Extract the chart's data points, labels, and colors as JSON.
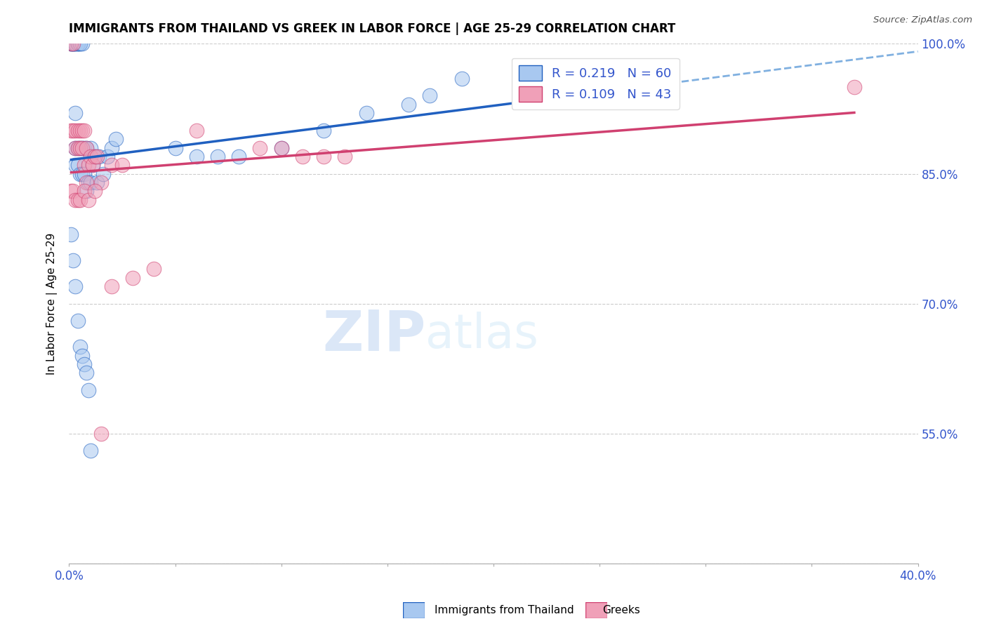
{
  "title": "IMMIGRANTS FROM THAILAND VS GREEK IN LABOR FORCE | AGE 25-29 CORRELATION CHART",
  "source": "Source: ZipAtlas.com",
  "ylabel": "In Labor Force | Age 25-29",
  "xlim": [
    0.0,
    0.4
  ],
  "ylim": [
    0.4,
    1.0
  ],
  "xticks": [
    0.0,
    0.05,
    0.1,
    0.15,
    0.2,
    0.25,
    0.3,
    0.35,
    0.4
  ],
  "xticklabels_bottom": [
    "0.0%",
    "",
    "",
    "",
    "",
    "",
    "",
    "",
    "40.0%"
  ],
  "yticks": [
    0.4,
    0.55,
    0.7,
    0.85,
    1.0
  ],
  "yticklabels_right": [
    "",
    "55.0%",
    "70.0%",
    "85.0%",
    "100.0%"
  ],
  "legend_r1": "R = 0.219",
  "legend_n1": "N = 60",
  "legend_r2": "R = 0.109",
  "legend_n2": "N = 43",
  "color_thailand": "#a8c8f0",
  "color_greek": "#f0a0b8",
  "color_trend_thailand": "#2060c0",
  "color_trend_greek": "#d04070",
  "color_dashed": "#80b0e0",
  "watermark_zip": "ZIP",
  "watermark_atlas": "atlas",
  "thailand_x": [
    0.001,
    0.001,
    0.001,
    0.002,
    0.002,
    0.002,
    0.002,
    0.003,
    0.003,
    0.003,
    0.003,
    0.003,
    0.003,
    0.004,
    0.004,
    0.004,
    0.004,
    0.004,
    0.005,
    0.005,
    0.005,
    0.005,
    0.006,
    0.006,
    0.006,
    0.007,
    0.007,
    0.008,
    0.008,
    0.009,
    0.01,
    0.01,
    0.011,
    0.012,
    0.013,
    0.014,
    0.016,
    0.018,
    0.02,
    0.022,
    0.05,
    0.06,
    0.07,
    0.08,
    0.1,
    0.12,
    0.14,
    0.16,
    0.17,
    0.185,
    0.001,
    0.002,
    0.003,
    0.004,
    0.005,
    0.006,
    0.007,
    0.008,
    0.009,
    0.01
  ],
  "thailand_y": [
    1.0,
    1.0,
    1.0,
    1.0,
    1.0,
    1.0,
    1.0,
    1.0,
    1.0,
    1.0,
    0.92,
    0.88,
    0.86,
    1.0,
    1.0,
    1.0,
    0.88,
    0.86,
    1.0,
    1.0,
    0.88,
    0.85,
    1.0,
    0.88,
    0.85,
    0.88,
    0.85,
    0.88,
    0.83,
    0.84,
    0.88,
    0.84,
    0.86,
    0.87,
    0.84,
    0.87,
    0.85,
    0.87,
    0.88,
    0.89,
    0.88,
    0.87,
    0.87,
    0.87,
    0.88,
    0.9,
    0.92,
    0.93,
    0.94,
    0.96,
    0.78,
    0.75,
    0.72,
    0.68,
    0.65,
    0.64,
    0.63,
    0.62,
    0.6,
    0.53
  ],
  "greek_x": [
    0.001,
    0.001,
    0.002,
    0.002,
    0.003,
    0.003,
    0.004,
    0.004,
    0.005,
    0.005,
    0.006,
    0.006,
    0.007,
    0.007,
    0.008,
    0.008,
    0.009,
    0.01,
    0.011,
    0.012,
    0.013,
    0.015,
    0.02,
    0.025,
    0.06,
    0.09,
    0.1,
    0.11,
    0.12,
    0.13,
    0.001,
    0.002,
    0.003,
    0.004,
    0.005,
    0.007,
    0.009,
    0.012,
    0.015,
    0.02,
    0.03,
    0.04,
    0.37
  ],
  "greek_y": [
    1.0,
    0.9,
    1.0,
    0.9,
    0.9,
    0.88,
    0.9,
    0.88,
    0.9,
    0.88,
    0.9,
    0.88,
    0.9,
    0.86,
    0.88,
    0.84,
    0.86,
    0.87,
    0.86,
    0.87,
    0.87,
    0.84,
    0.86,
    0.86,
    0.9,
    0.88,
    0.88,
    0.87,
    0.87,
    0.87,
    0.83,
    0.83,
    0.82,
    0.82,
    0.82,
    0.83,
    0.82,
    0.83,
    0.55,
    0.72,
    0.73,
    0.74,
    0.95
  ]
}
